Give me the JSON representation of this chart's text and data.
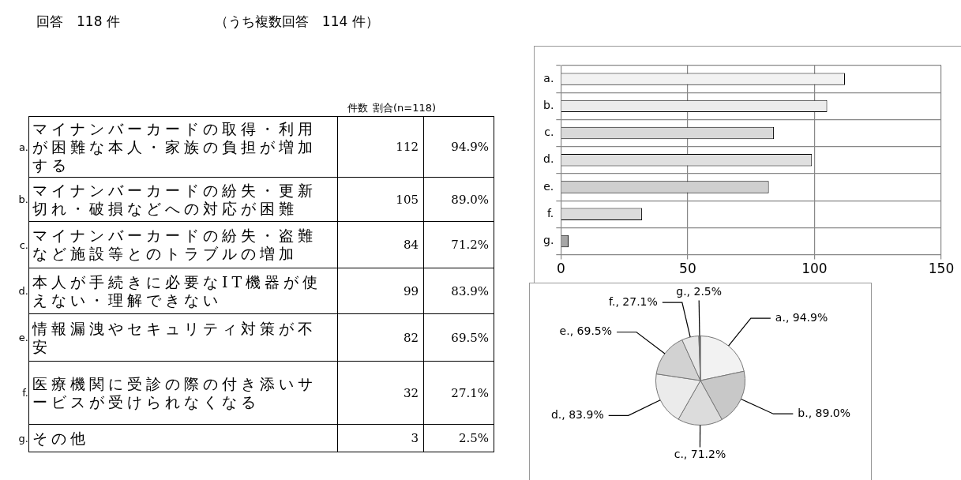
{
  "chart_data": [
    {
      "type": "other",
      "title": "回答　118 件",
      "subtitle": "（うち複数回答　114 件）",
      "categories": [
        "マイナンバーカードの取得・利用が困難な本人・家族の負担が増加する",
        "マイナンバーカードの紛失・更新切れ・破損などへの対応が困難",
        "マイナンバーカードの紛失・盗難など施設等とのトラブルの増加",
        "本人が手続きに必要なIT機器が使えない・理解できない",
        "情報漏洩やセキュリティ対策が不安",
        "医療機関に受診の際の付き添いサービスが受けられなくなる",
        "その他"
      ],
      "series": [
        {
          "values": [
            112,
            105,
            84,
            99,
            82,
            32,
            3
          ]
        },
        {
          "values": [
            94.9,
            89.0,
            71.2,
            83.9,
            69.5,
            27.1,
            2.5
          ],
          "value_labels": [
            "94.9%",
            "89.0%",
            "71.2%",
            "83.9%",
            "69.5%",
            "27.1%",
            "2.5%"
          ]
        }
      ],
      "data_labels": true,
      "annotations": [
        "件数",
        "割合(n=118)",
        "a.",
        "b.",
        "c.",
        "d.",
        "e.",
        "f.",
        "g."
      ]
    },
    {
      "type": "bar",
      "orientation": "horizontal",
      "categories": [
        "a.",
        "b.",
        "c.",
        "d.",
        "e.",
        "f.",
        "g."
      ],
      "values": [
        112,
        105,
        84,
        99,
        82,
        32,
        3
      ],
      "colors": [
        "#f2f2f2",
        "#ececec",
        "#d9d9d9",
        "#e0e0e0",
        "#cfcfcf",
        "#dcdcdc",
        "#a6a6a6"
      ],
      "xlim": [
        0,
        150
      ],
      "xticks": [
        0,
        50,
        100,
        150
      ],
      "grid": true
    },
    {
      "type": "pie",
      "categories": [
        "a.",
        "b.",
        "c.",
        "d.",
        "e.",
        "f.",
        "g."
      ],
      "values": [
        94.9,
        89.0,
        71.2,
        83.9,
        69.5,
        27.1,
        2.5
      ],
      "colors": [
        "#f2f2f2",
        "#c8c8c8",
        "#dcdcdc",
        "#ebebeb",
        "#d2d2d2",
        "#e6e6e6",
        "#555555"
      ],
      "value_labels": [
        "94.9%",
        "89.0%",
        "71.2%",
        "83.9%",
        "69.5%",
        "27.1%",
        "2.5%"
      ]
    }
  ]
}
